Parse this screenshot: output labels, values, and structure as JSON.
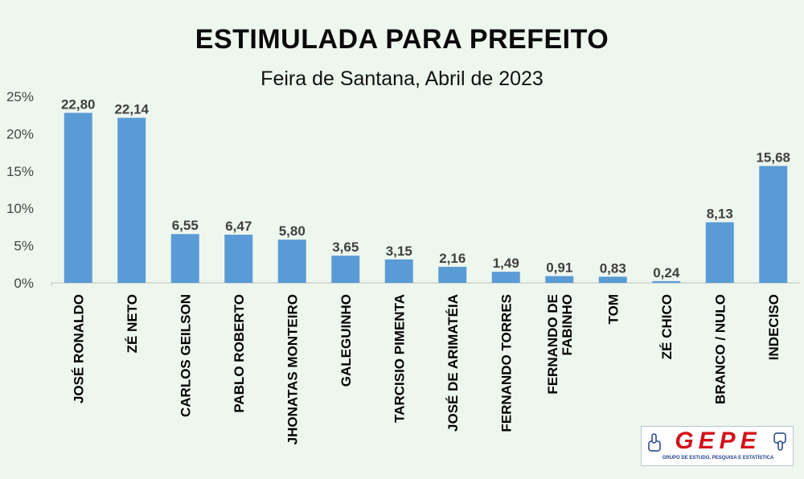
{
  "chart_data": {
    "type": "bar",
    "title": "ESTIMULADA PARA PREFEITO",
    "subtitle": "Feira de Santana, Abril de 2023",
    "categories": [
      "JOSÉ RONALDO",
      "ZÉ NETO",
      "CARLOS GEILSON",
      "PABLO ROBERTO",
      "JHONATAS MONTEIRO",
      "GALEGUINHO",
      "TARCISIO PIMENTA",
      "JOSÉ DE ARIMATÉIA",
      "FERNANDO TORRES",
      "FERNANDO DE FABINHO",
      "TOM",
      "ZÉ CHICO",
      "BRANCO / NULO",
      "INDECISO"
    ],
    "category_lines": [
      [
        "JOSÉ RONALDO"
      ],
      [
        "ZÉ NETO"
      ],
      [
        "CARLOS GEILSON"
      ],
      [
        "PABLO ROBERTO"
      ],
      [
        "JHONATAS MONTEIRO"
      ],
      [
        "GALEGUINHO"
      ],
      [
        "TARCISIO PIMENTA"
      ],
      [
        "JOSÉ DE ARIMATÉIA"
      ],
      [
        "FERNANDO TORRES"
      ],
      [
        "FERNANDO DE",
        "FABINHO"
      ],
      [
        "TOM"
      ],
      [
        "ZÉ CHICO"
      ],
      [
        "BRANCO / NULO"
      ],
      [
        "INDECISO"
      ]
    ],
    "values": [
      22.8,
      22.14,
      6.55,
      6.47,
      5.8,
      3.65,
      3.15,
      2.16,
      1.49,
      0.91,
      0.83,
      0.24,
      8.13,
      15.68
    ],
    "value_labels": [
      "22,80",
      "22,14",
      "6,55",
      "6,47",
      "5,80",
      "3,65",
      "3,15",
      "2,16",
      "1,49",
      "0,91",
      "0,83",
      "0,24",
      "8,13",
      "15,68"
    ],
    "yticks": [
      0,
      5,
      10,
      15,
      20,
      25
    ],
    "ytick_labels": [
      "0%",
      "5%",
      "10%",
      "15%",
      "20%",
      "25%"
    ],
    "ylim": [
      0,
      25
    ],
    "grid": false,
    "bar_color": "#5b9bd5"
  },
  "logo": {
    "mark": "GEPE",
    "tagline": "GRUPO DE ESTUDO, PESQUISA E ESTATÍSTICA"
  }
}
